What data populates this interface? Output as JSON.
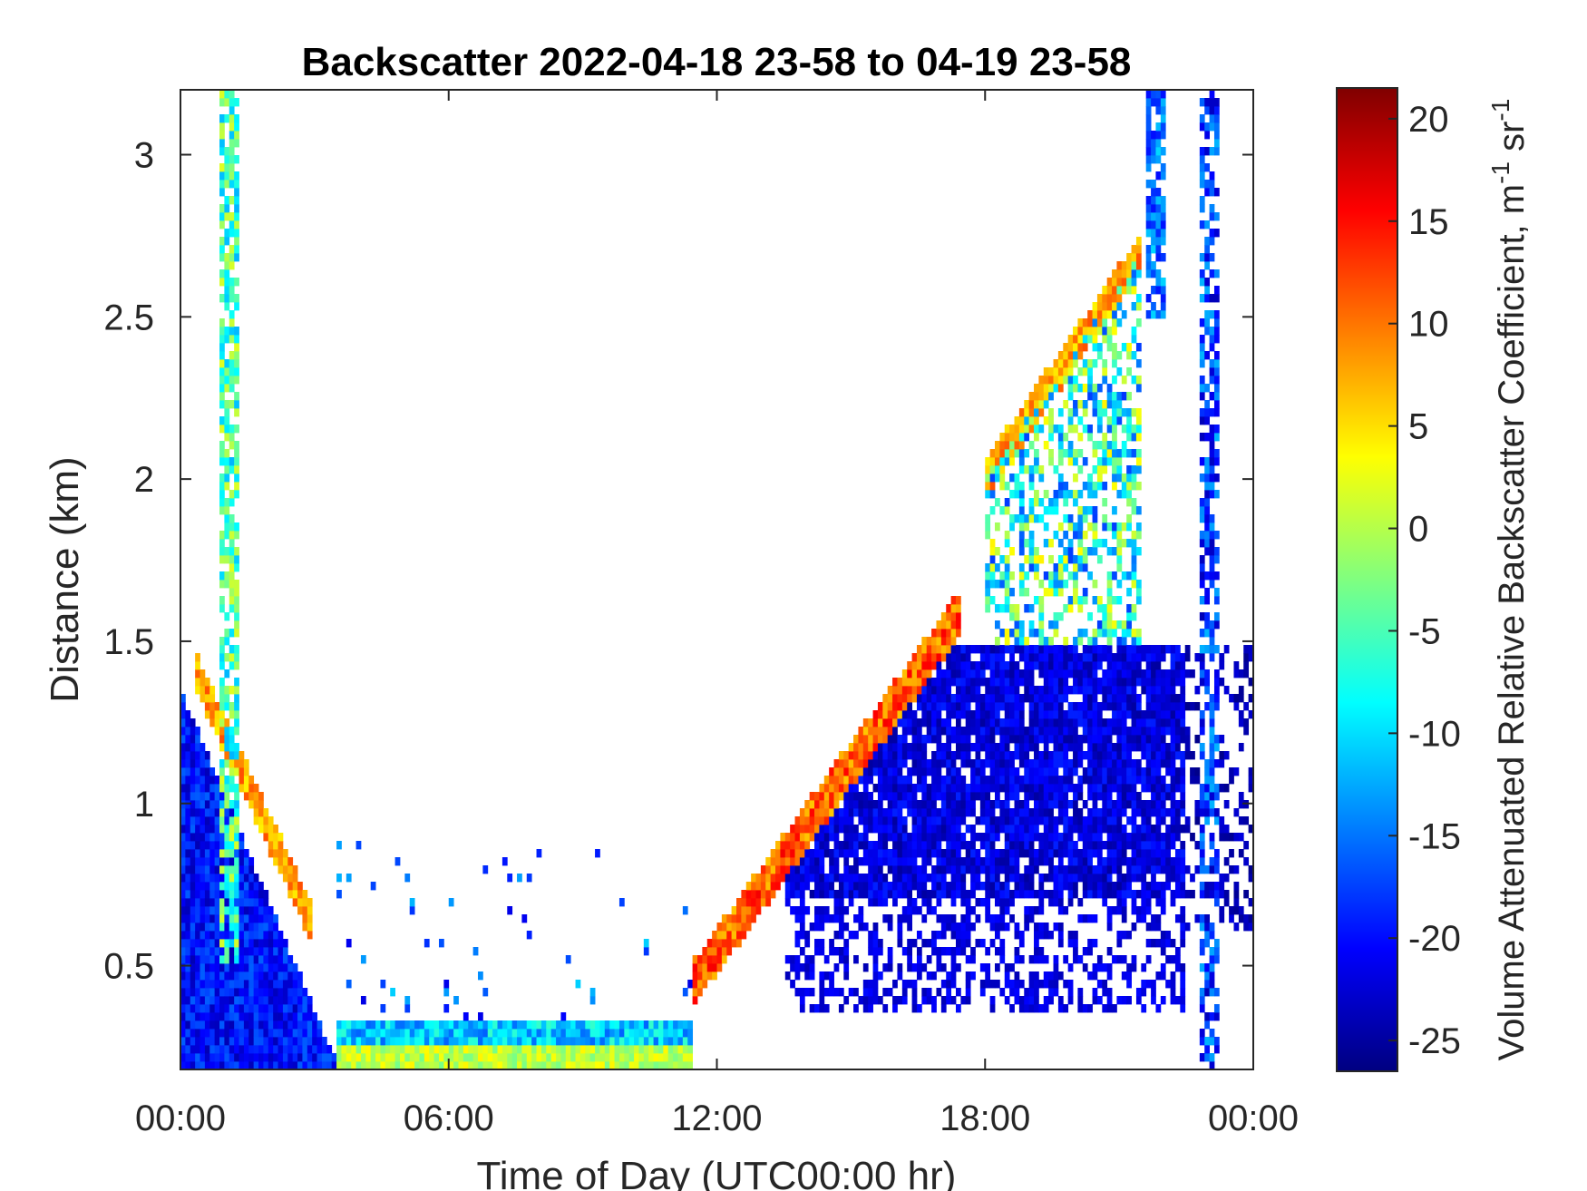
{
  "chart_data": {
    "type": "heatmap",
    "title": "Backscatter 2022-04-18 23-58 to 04-19 23-58",
    "xlabel": "Time of Day (UTC00:00 hr)",
    "ylabel": "Distance (km)",
    "xlim": [
      0,
      24
    ],
    "ylim": [
      0.18,
      3.2
    ],
    "x_ticks": [
      {
        "value": 0,
        "label": "00:00"
      },
      {
        "value": 6,
        "label": "06:00"
      },
      {
        "value": 12,
        "label": "12:00"
      },
      {
        "value": 18,
        "label": "18:00"
      },
      {
        "value": 24,
        "label": "00:00"
      }
    ],
    "y_ticks": [
      {
        "value": 0.5,
        "label": "0.5"
      },
      {
        "value": 1,
        "label": "1"
      },
      {
        "value": 1.5,
        "label": "1.5"
      },
      {
        "value": 2,
        "label": "2"
      },
      {
        "value": 2.5,
        "label": "2.5"
      },
      {
        "value": 3,
        "label": "3"
      }
    ],
    "colorbar": {
      "label": "Volume Attenuated Relative Backscatter Coefficient, m",
      "label_sup1": "-1",
      "label_mid": " sr",
      "label_sup2": "-1",
      "colormap": "jet",
      "clim": [
        -26.5,
        21.5
      ],
      "ticks": [
        {
          "value": -25,
          "label": "-25"
        },
        {
          "value": -20,
          "label": "-20"
        },
        {
          "value": -15,
          "label": "-15"
        },
        {
          "value": -10,
          "label": "-10"
        },
        {
          "value": -5,
          "label": "-5"
        },
        {
          "value": 0,
          "label": "0"
        },
        {
          "value": 5,
          "label": "5"
        },
        {
          "value": 10,
          "label": "10"
        },
        {
          "value": 15,
          "label": "15"
        },
        {
          "value": 20,
          "label": "20"
        }
      ]
    },
    "grid": false,
    "data_regions": [
      {
        "feature": "dense near-surface aerosol layer",
        "x_range_hr": [
          0,
          3.5
        ],
        "y_top_km": [
          1.35,
          0.2
        ],
        "value_approx": -20
      },
      {
        "feature": "strong descending layer",
        "x_range_hr": [
          0.3,
          3.0
        ],
        "y_km": [
          1.4,
          0.6
        ],
        "value_approx": 10
      },
      {
        "feature": "tall plume",
        "x_range_hr": [
          0.8,
          1.5
        ],
        "y_km": [
          0.5,
          3.2
        ],
        "value_approx": -10
      },
      {
        "feature": "shallow surface layer",
        "x_range_hr": [
          3.5,
          11.5
        ],
        "y_km": [
          0.18,
          0.33
        ],
        "value_approx": 0
      },
      {
        "feature": "rising strong layer",
        "x_range_hr": [
          11.5,
          17.5
        ],
        "y_km": [
          0.45,
          1.6
        ],
        "value_approx": 12
      },
      {
        "feature": "boundary layer bulk",
        "x_range_hr": [
          13,
          23
        ],
        "y_km": [
          0.3,
          1.5
        ],
        "value_approx": -22
      },
      {
        "feature": "upper structures",
        "x_range_hr": [
          18,
          21
        ],
        "y_km": [
          1.5,
          2.7
        ],
        "value_approx": -5
      },
      {
        "feature": "late high plumes",
        "x_range_hr": [
          21.5,
          23.3
        ],
        "y_km": [
          0.2,
          3.2
        ],
        "value_approx": -18
      }
    ]
  }
}
